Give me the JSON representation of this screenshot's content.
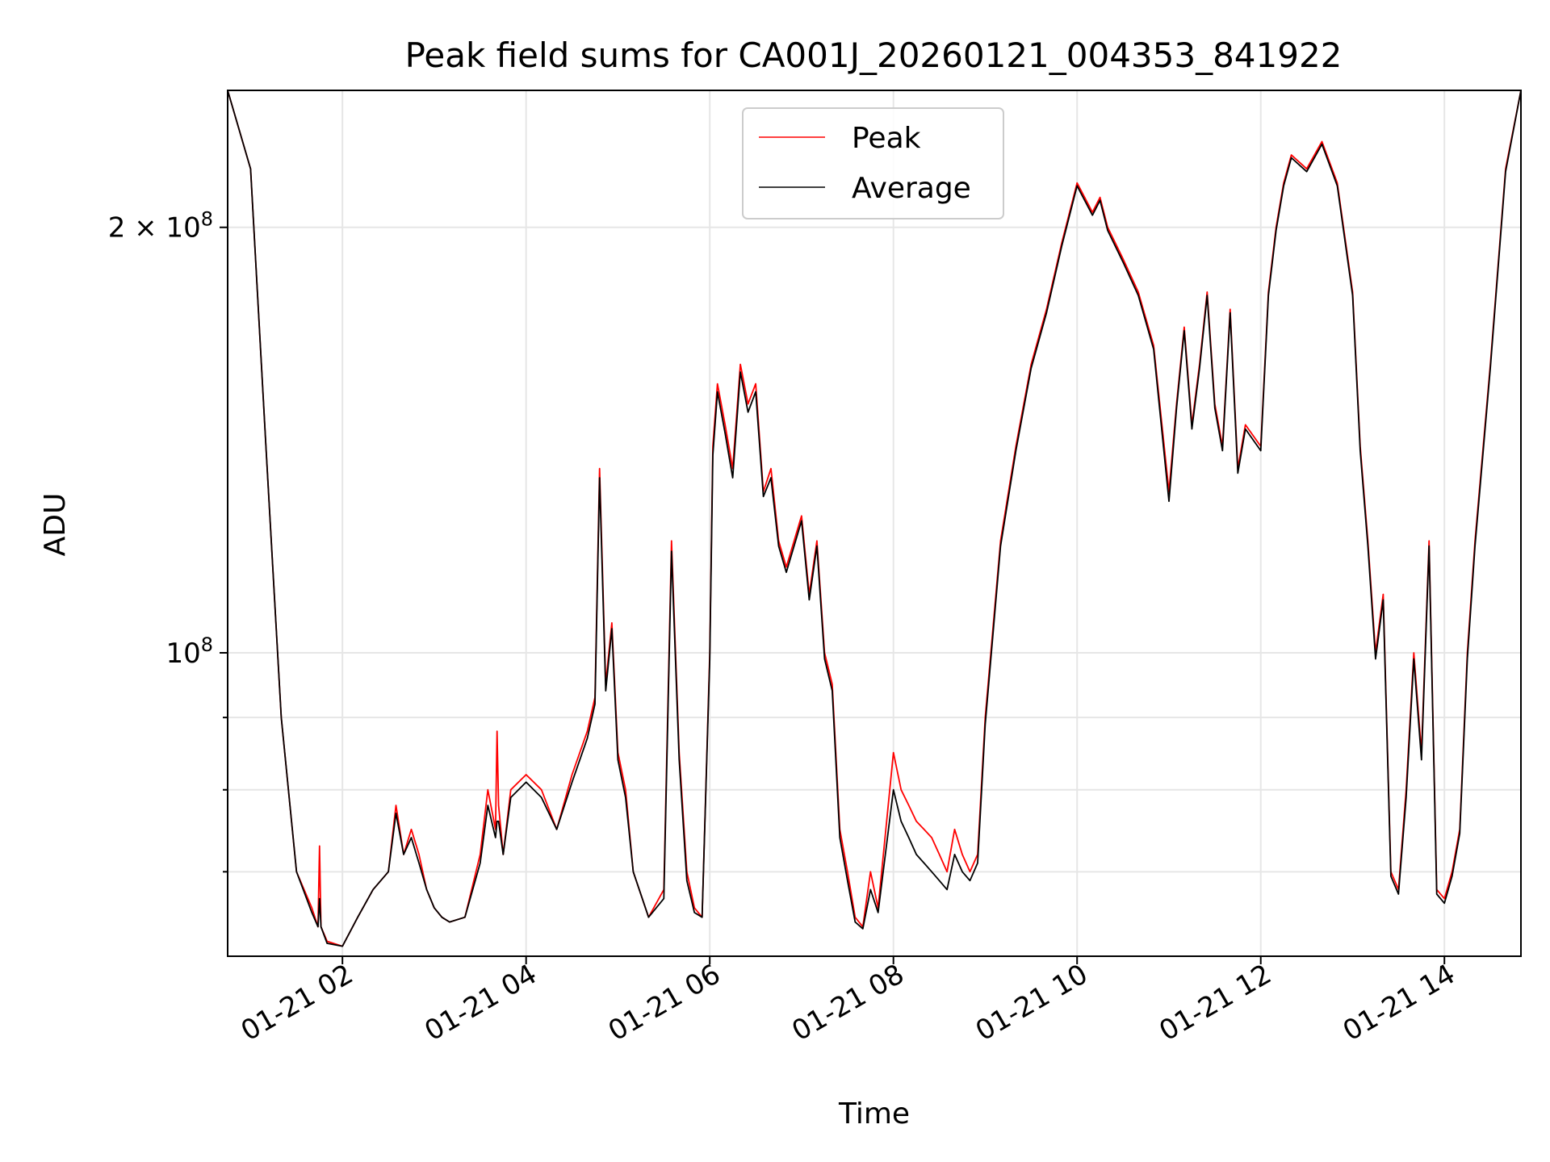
{
  "chart_data": {
    "type": "line",
    "title": "Peak field sums for CA001J_20260121_004353_841922",
    "xlabel": "Time",
    "ylabel": "ADU",
    "y_scale": "log",
    "xlim": [
      "2026-01-21 00:45",
      "2026-01-21 14:50"
    ],
    "ylim": [
      61000000,
      250000000
    ],
    "x_ticks": [
      "01-21 02",
      "01-21 04",
      "01-21 06",
      "01-21 08",
      "01-21 10",
      "01-21 12",
      "01-21 14"
    ],
    "x_tick_values": [
      "2026-01-21 02:00",
      "2026-01-21 04:00",
      "2026-01-21 06:00",
      "2026-01-21 08:00",
      "2026-01-21 10:00",
      "2026-01-21 12:00",
      "2026-01-21 14:00"
    ],
    "y_major_ticks": [
      {
        "value": 100000000,
        "label_base": "10",
        "label_exp": "8"
      },
      {
        "value": 200000000,
        "label_base": "2 × 10",
        "label_exp": "8"
      }
    ],
    "y_minor_ticks": [
      70000000,
      80000000,
      90000000
    ],
    "grid": true,
    "legend_position": "top-center",
    "series": [
      {
        "name": "Peak",
        "color": "#ff0000",
        "x": [
          "00:45",
          "01:00",
          "01:10",
          "01:20",
          "01:30",
          "01:40",
          "01:44",
          "01:45",
          "01:46",
          "01:50",
          "02:00",
          "02:10",
          "02:20",
          "02:30",
          "02:35",
          "02:40",
          "02:45",
          "02:50",
          "02:55",
          "03:00",
          "03:05",
          "03:10",
          "03:20",
          "03:30",
          "03:35",
          "03:40",
          "03:41",
          "03:42",
          "03:45",
          "03:50",
          "04:00",
          "04:10",
          "04:20",
          "04:30",
          "04:40",
          "04:45",
          "04:48",
          "04:52",
          "04:56",
          "05:00",
          "05:05",
          "05:10",
          "05:20",
          "05:30",
          "05:35",
          "05:40",
          "05:45",
          "05:50",
          "05:55",
          "06:00",
          "06:02",
          "06:05",
          "06:10",
          "06:15",
          "06:20",
          "06:25",
          "06:30",
          "06:35",
          "06:40",
          "06:45",
          "06:50",
          "07:00",
          "07:05",
          "07:10",
          "07:15",
          "07:20",
          "07:25",
          "07:30",
          "07:35",
          "07:40",
          "07:45",
          "07:50",
          "08:00",
          "08:05",
          "08:10",
          "08:15",
          "08:20",
          "08:25",
          "08:30",
          "08:35",
          "08:40",
          "08:45",
          "08:50",
          "08:55",
          "09:00",
          "09:10",
          "09:20",
          "09:30",
          "09:40",
          "09:50",
          "10:00",
          "10:10",
          "10:15",
          "10:20",
          "10:30",
          "10:40",
          "10:50",
          "11:00",
          "11:05",
          "11:10",
          "11:15",
          "11:20",
          "11:25",
          "11:30",
          "11:35",
          "11:40",
          "11:45",
          "11:50",
          "12:00",
          "12:05",
          "12:10",
          "12:15",
          "12:20",
          "12:30",
          "12:40",
          "12:50",
          "13:00",
          "13:05",
          "13:10",
          "13:15",
          "13:20",
          "13:25",
          "13:30",
          "13:35",
          "13:40",
          "13:45",
          "13:50",
          "13:55",
          "14:00",
          "14:05",
          "14:10",
          "14:15",
          "14:20",
          "14:30",
          "14:40",
          "14:50"
        ],
        "y": [
          250000000,
          220000000,
          140000000,
          90000000,
          70000000,
          66000000,
          64000000,
          73000000,
          64000000,
          62500000,
          62000000,
          65000000,
          68000000,
          70000000,
          78000000,
          72000000,
          75000000,
          72000000,
          68000000,
          66000000,
          65000000,
          64500000,
          65000000,
          72000000,
          80000000,
          75000000,
          88000000,
          78000000,
          72000000,
          80000000,
          82000000,
          80000000,
          75000000,
          82000000,
          88000000,
          93000000,
          135000000,
          95000000,
          105000000,
          85000000,
          80000000,
          70000000,
          65000000,
          68000000,
          120000000,
          85000000,
          70000000,
          66000000,
          65000000,
          100000000,
          140000000,
          155000000,
          145000000,
          135000000,
          160000000,
          150000000,
          155000000,
          130000000,
          135000000,
          120000000,
          115000000,
          125000000,
          110000000,
          120000000,
          100000000,
          95000000,
          75000000,
          70000000,
          65000000,
          64000000,
          70000000,
          66000000,
          85000000,
          80000000,
          78000000,
          76000000,
          75000000,
          74000000,
          72000000,
          70000000,
          75000000,
          72000000,
          70000000,
          72000000,
          90000000,
          120000000,
          140000000,
          160000000,
          175000000,
          195000000,
          215000000,
          205000000,
          210000000,
          200000000,
          190000000,
          180000000,
          165000000,
          130000000,
          150000000,
          170000000,
          145000000,
          160000000,
          180000000,
          150000000,
          140000000,
          175000000,
          135000000,
          145000000,
          140000000,
          180000000,
          200000000,
          215000000,
          225000000,
          220000000,
          230000000,
          215000000,
          180000000,
          140000000,
          120000000,
          100000000,
          110000000,
          70000000,
          68000000,
          80000000,
          100000000,
          85000000,
          120000000,
          68000000,
          67000000,
          70000000,
          75000000,
          100000000,
          120000000,
          160000000,
          220000000,
          250000000
        ]
      },
      {
        "name": "Average",
        "color": "#000000",
        "x": [
          "00:45",
          "01:00",
          "01:10",
          "01:20",
          "01:30",
          "01:40",
          "01:44",
          "01:45",
          "01:46",
          "01:50",
          "02:00",
          "02:10",
          "02:20",
          "02:30",
          "02:35",
          "02:40",
          "02:45",
          "02:50",
          "02:55",
          "03:00",
          "03:05",
          "03:10",
          "03:20",
          "03:30",
          "03:35",
          "03:40",
          "03:41",
          "03:42",
          "03:45",
          "03:50",
          "04:00",
          "04:10",
          "04:20",
          "04:30",
          "04:40",
          "04:45",
          "04:48",
          "04:52",
          "04:56",
          "05:00",
          "05:05",
          "05:10",
          "05:20",
          "05:30",
          "05:35",
          "05:40",
          "05:45",
          "05:50",
          "05:55",
          "06:00",
          "06:02",
          "06:05",
          "06:10",
          "06:15",
          "06:20",
          "06:25",
          "06:30",
          "06:35",
          "06:40",
          "06:45",
          "06:50",
          "07:00",
          "07:05",
          "07:10",
          "07:15",
          "07:20",
          "07:25",
          "07:30",
          "07:35",
          "07:40",
          "07:45",
          "07:50",
          "08:00",
          "08:05",
          "08:10",
          "08:15",
          "08:20",
          "08:25",
          "08:30",
          "08:35",
          "08:40",
          "08:45",
          "08:50",
          "08:55",
          "09:00",
          "09:10",
          "09:20",
          "09:30",
          "09:40",
          "09:50",
          "10:00",
          "10:10",
          "10:15",
          "10:20",
          "10:30",
          "10:40",
          "10:50",
          "11:00",
          "11:05",
          "11:10",
          "11:15",
          "11:20",
          "11:25",
          "11:30",
          "11:35",
          "11:40",
          "11:45",
          "11:50",
          "12:00",
          "12:05",
          "12:10",
          "12:15",
          "12:20",
          "12:30",
          "12:40",
          "12:50",
          "13:00",
          "13:05",
          "13:10",
          "13:15",
          "13:20",
          "13:25",
          "13:30",
          "13:35",
          "13:40",
          "13:45",
          "13:50",
          "13:55",
          "14:00",
          "14:05",
          "14:10",
          "14:15",
          "14:20",
          "14:30",
          "14:40",
          "14:50"
        ],
        "y": [
          250000000,
          220000000,
          140000000,
          90000000,
          70000000,
          65500000,
          64000000,
          67000000,
          64000000,
          62300000,
          62000000,
          65000000,
          68000000,
          70000000,
          77000000,
          72000000,
          74000000,
          71000000,
          68000000,
          66000000,
          65000000,
          64500000,
          65000000,
          71000000,
          78000000,
          74000000,
          76000000,
          76000000,
          72000000,
          79000000,
          81000000,
          79000000,
          75000000,
          81000000,
          87000000,
          92000000,
          133000000,
          94000000,
          104000000,
          84000000,
          79000000,
          70000000,
          65000000,
          67000000,
          118000000,
          84000000,
          69000000,
          65500000,
          65000000,
          99000000,
          138000000,
          153000000,
          143000000,
          133000000,
          158000000,
          148000000,
          153000000,
          129000000,
          133000000,
          119000000,
          114000000,
          124000000,
          109000000,
          119000000,
          99000000,
          94000000,
          74000000,
          69000000,
          64500000,
          63800000,
          68000000,
          65500000,
          80000000,
          76000000,
          74000000,
          72000000,
          71000000,
          70000000,
          69000000,
          68000000,
          72000000,
          70000000,
          69000000,
          71000000,
          89000000,
          119000000,
          139000000,
          159000000,
          174000000,
          194000000,
          214000000,
          204000000,
          209000000,
          199000000,
          189000000,
          179000000,
          164000000,
          128000000,
          149000000,
          169000000,
          144000000,
          159000000,
          179000000,
          149000000,
          139000000,
          174000000,
          134000000,
          144000000,
          139000000,
          179000000,
          199000000,
          214000000,
          224000000,
          219000000,
          229000000,
          214000000,
          179000000,
          139000000,
          119000000,
          99000000,
          109000000,
          69500000,
          67500000,
          79000000,
          99000000,
          84000000,
          119000000,
          67500000,
          66500000,
          69500000,
          74500000,
          99000000,
          119000000,
          159000000,
          219000000,
          250000000
        ]
      }
    ]
  }
}
